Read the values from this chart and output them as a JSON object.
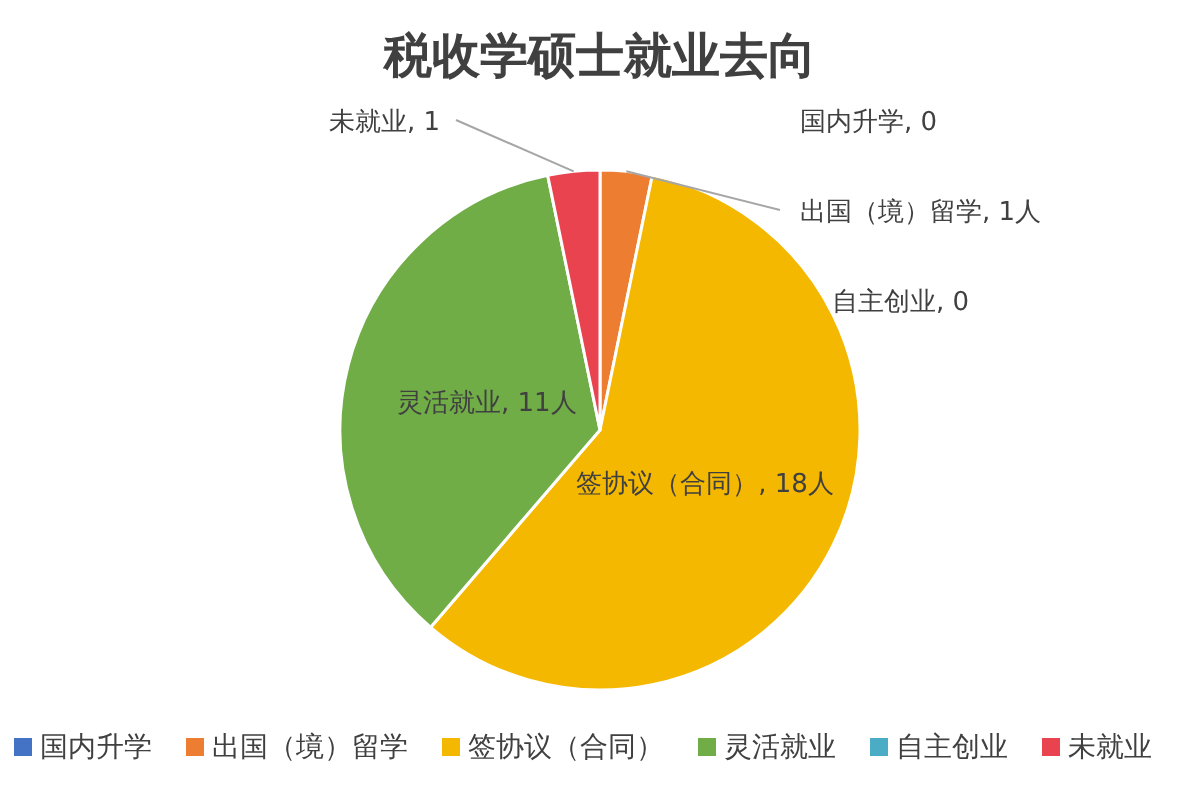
{
  "chart_data": {
    "type": "pie",
    "title": "税收学硕士就业去向",
    "categories": [
      "国内升学",
      "出国（境）留学",
      "签协议（合同）",
      "灵活就业",
      "自主创业",
      "未就业"
    ],
    "values": [
      0,
      1,
      18,
      11,
      0,
      1
    ],
    "colors": [
      "#4472c4",
      "#ed7d31",
      "#f5b800",
      "#70ad47",
      "#4bacc6",
      "#e8434f"
    ],
    "value_labels": [
      "国内升学, 0",
      "出国（境）留学, 1人",
      "签协议（合同）, 18人",
      "灵活就业, 11人",
      "自主创业, 0",
      "未就业, 1"
    ],
    "legend": "bottom"
  }
}
